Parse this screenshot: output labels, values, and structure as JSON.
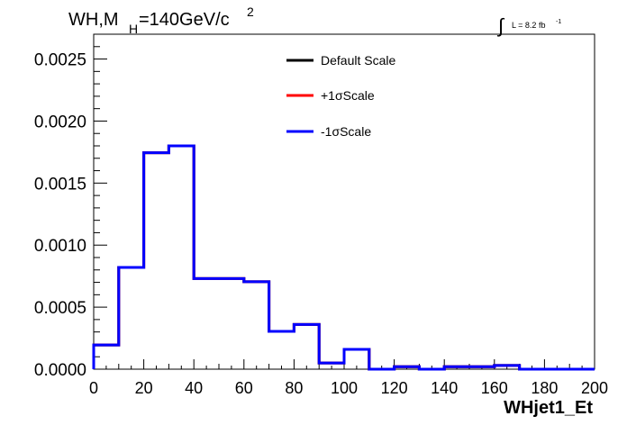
{
  "title": {
    "main": "WH,M",
    "sub": "H",
    "val": "=140GeV/c",
    "sup": "2"
  },
  "lumi": {
    "integral": "∫",
    "text": "L = 8.2 fb",
    "sup": "-1"
  },
  "chart_data": {
    "type": "step",
    "xlabel": "WHjet1_Et",
    "ylabel": "",
    "xlim": [
      0,
      200
    ],
    "ylim": [
      0,
      0.0027
    ],
    "x_ticks": [
      "0",
      "20",
      "40",
      "60",
      "80",
      "100",
      "120",
      "140",
      "160",
      "180",
      "200"
    ],
    "y_ticks": [
      "0.0000",
      "0.0005",
      "0.0010",
      "0.0015",
      "0.0020",
      "0.0025"
    ],
    "bin_edges": [
      0,
      10,
      20,
      30,
      40,
      50,
      60,
      70,
      80,
      90,
      100,
      110,
      120,
      130,
      140,
      150,
      160,
      170,
      180,
      190,
      200
    ],
    "legend_position": "top-center",
    "series": [
      {
        "name": "Default Scale",
        "color": "#000000",
        "values": [
          0.000195,
          0.00082,
          0.001745,
          0.0018,
          0.00073,
          0.00073,
          0.000705,
          0.000305,
          0.00036,
          5e-05,
          0.00016,
          0.0,
          2e-05,
          0.0,
          2e-05,
          2e-05,
          3e-05,
          0.0,
          0.0,
          0.0
        ]
      },
      {
        "name": "+1σScale",
        "color": "#ff0000",
        "values": [
          0.000195,
          0.00082,
          0.001745,
          0.0018,
          0.00073,
          0.00073,
          0.000705,
          0.000305,
          0.00036,
          5e-05,
          0.00016,
          0.0,
          2e-05,
          0.0,
          2e-05,
          2e-05,
          3e-05,
          0.0,
          0.0,
          0.0
        ]
      },
      {
        "name": "-1σScale",
        "color": "#0000ff",
        "values": [
          0.000195,
          0.00082,
          0.001745,
          0.0018,
          0.00073,
          0.00073,
          0.000705,
          0.000305,
          0.00036,
          5e-05,
          0.00016,
          0.0,
          2e-05,
          0.0,
          2e-05,
          2e-05,
          3e-05,
          0.0,
          0.0,
          0.0
        ]
      }
    ]
  }
}
